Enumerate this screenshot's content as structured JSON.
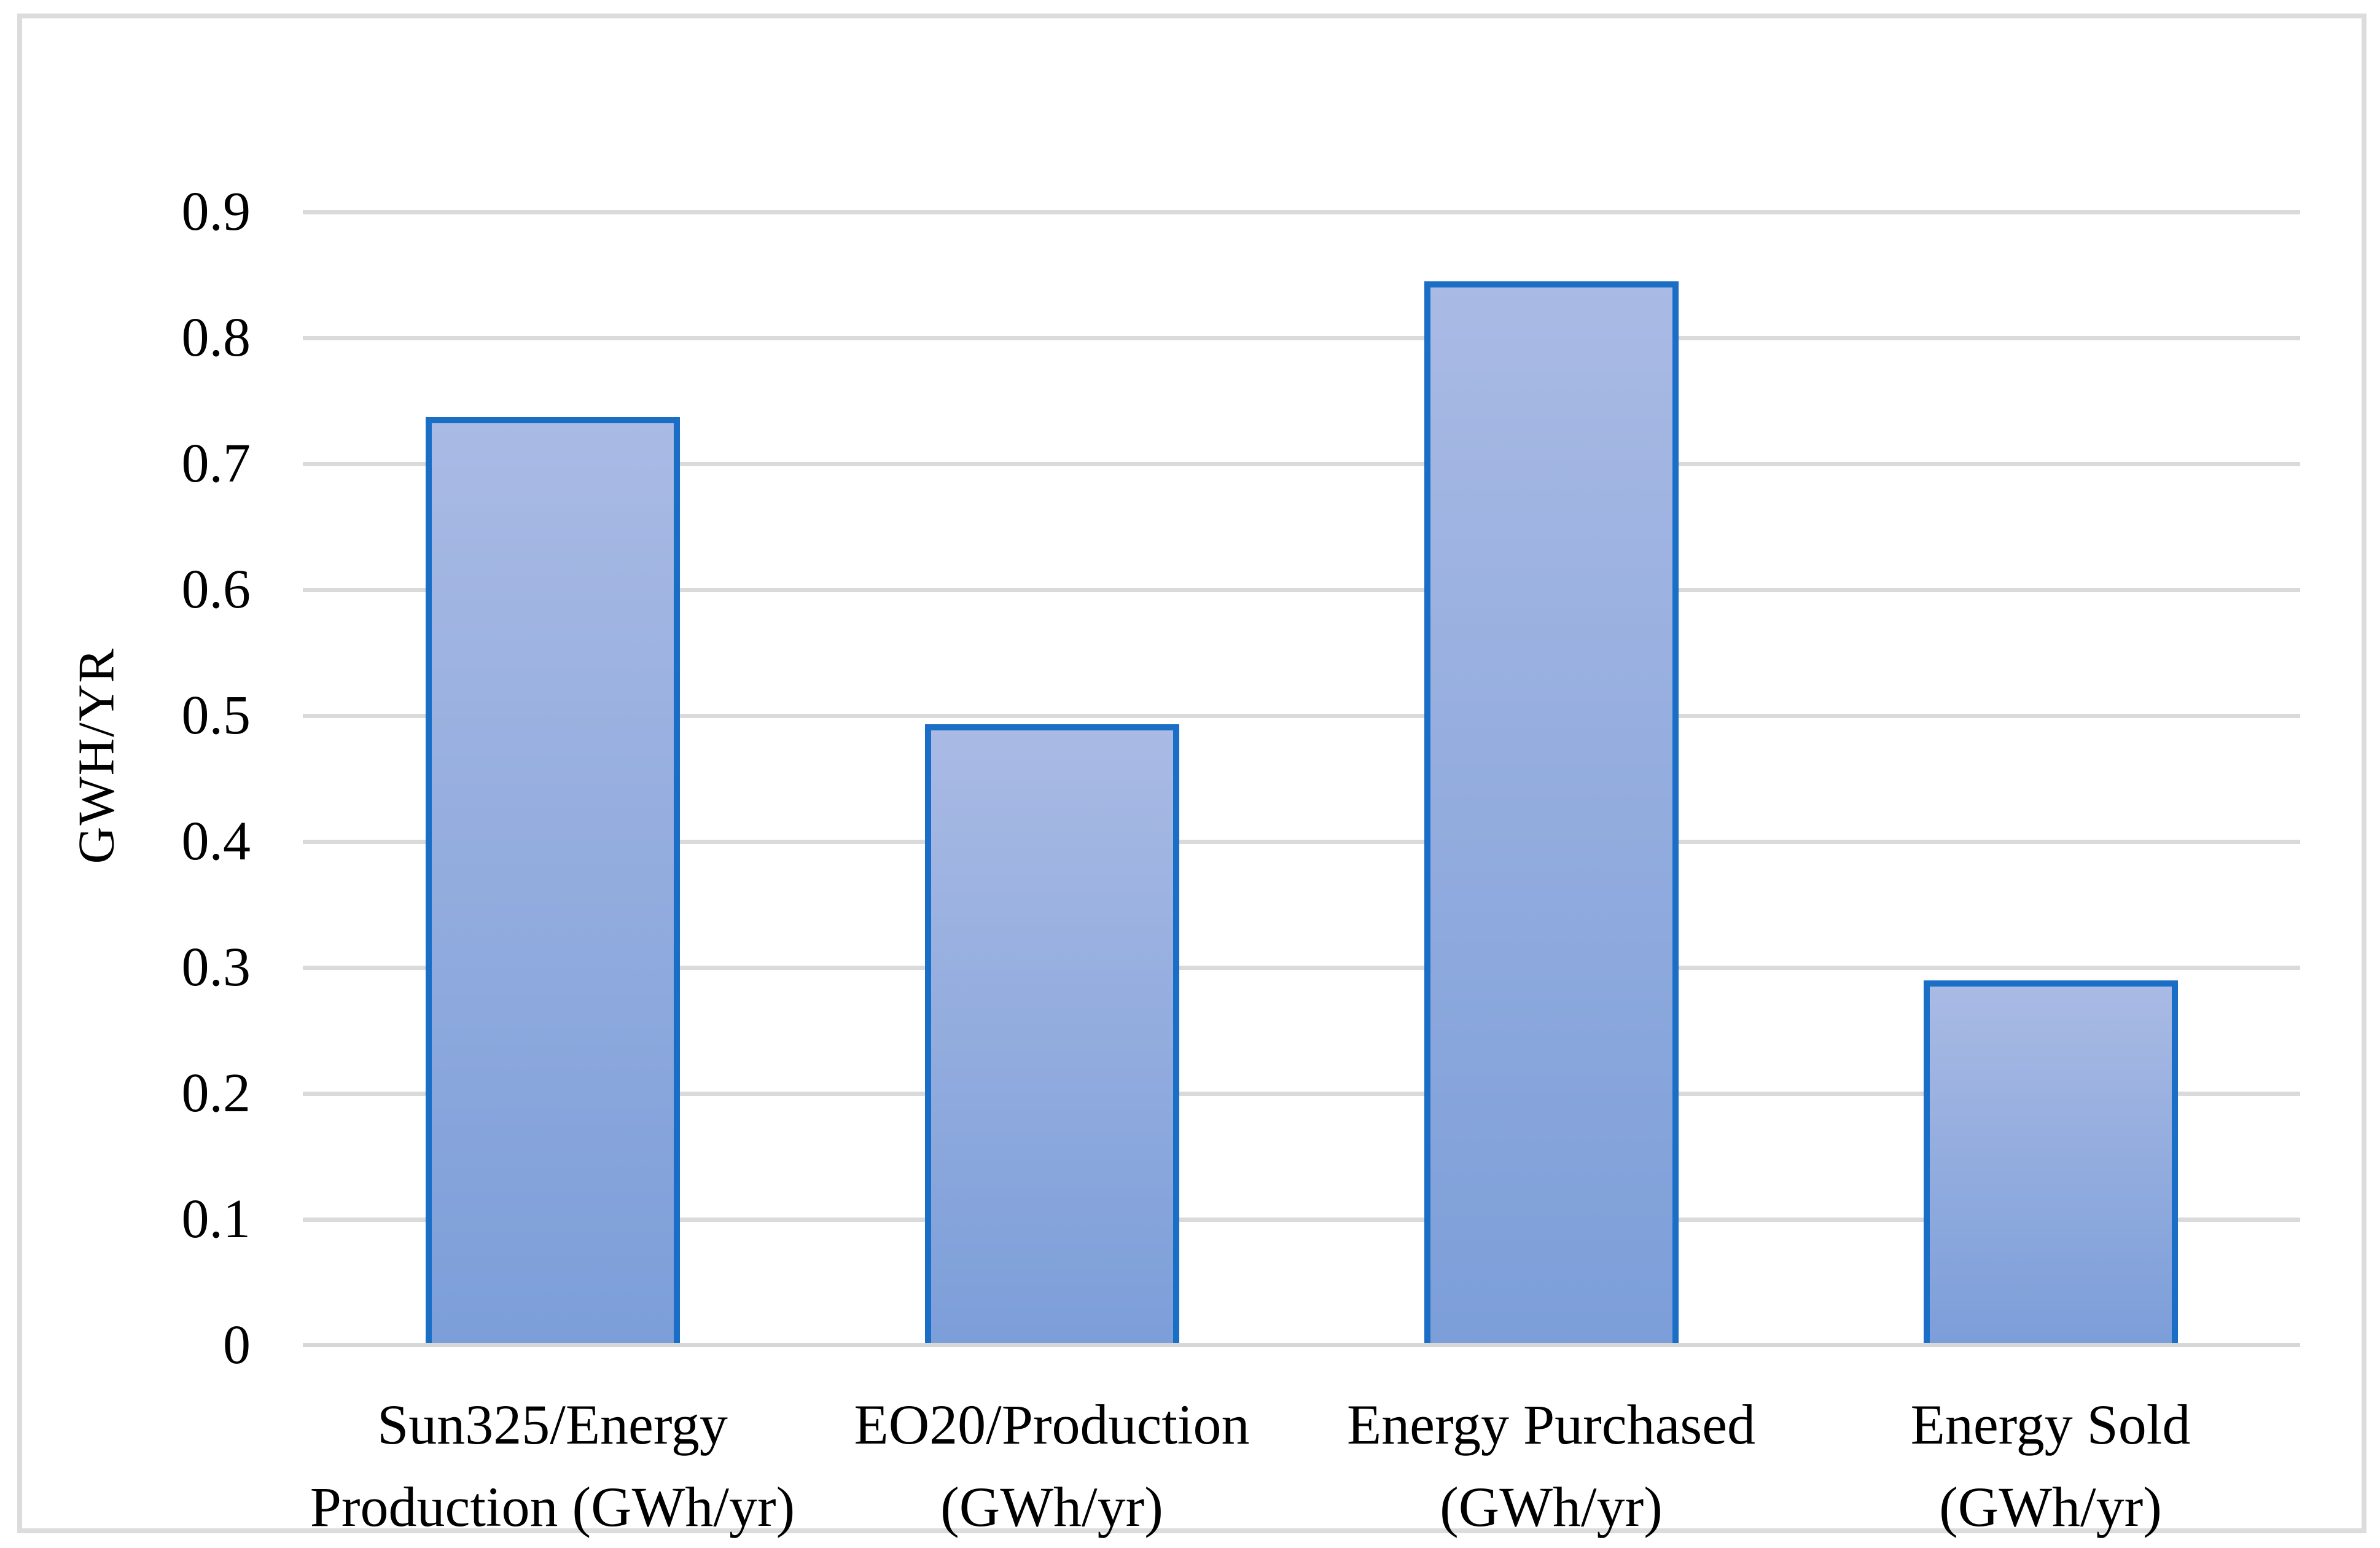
{
  "chart_data": {
    "type": "bar",
    "title": "",
    "xlabel": "",
    "ylabel": "GWH/YR",
    "categories": [
      "Sun325/Energy\nProduction (GWh/yr)",
      "EO20/Production\n(GWh/yr)",
      "Energy Purchased\n(GWh/yr)",
      "Energy Sold\n(GWh/yr)"
    ],
    "values": [
      0.737,
      0.493,
      0.845,
      0.29
    ],
    "ylim": [
      0,
      0.9
    ],
    "ytick_step": 0.1,
    "yticks": [
      "0.9",
      "0.8",
      "0.7",
      "0.6",
      "0.5",
      "0.4",
      "0.3",
      "0.2",
      "0.1",
      "0"
    ],
    "grid": true,
    "legend": false,
    "colors": {
      "bar_fill_top": "#A9BAE4",
      "bar_fill_bottom": "#7C9ED9",
      "bar_border": "#1B6EC5",
      "gridline": "#DADADA",
      "axis_line": "#D7D7D7",
      "frame_border": "#DCDCDC",
      "text": "#000000",
      "background": "#FFFFFF"
    }
  }
}
